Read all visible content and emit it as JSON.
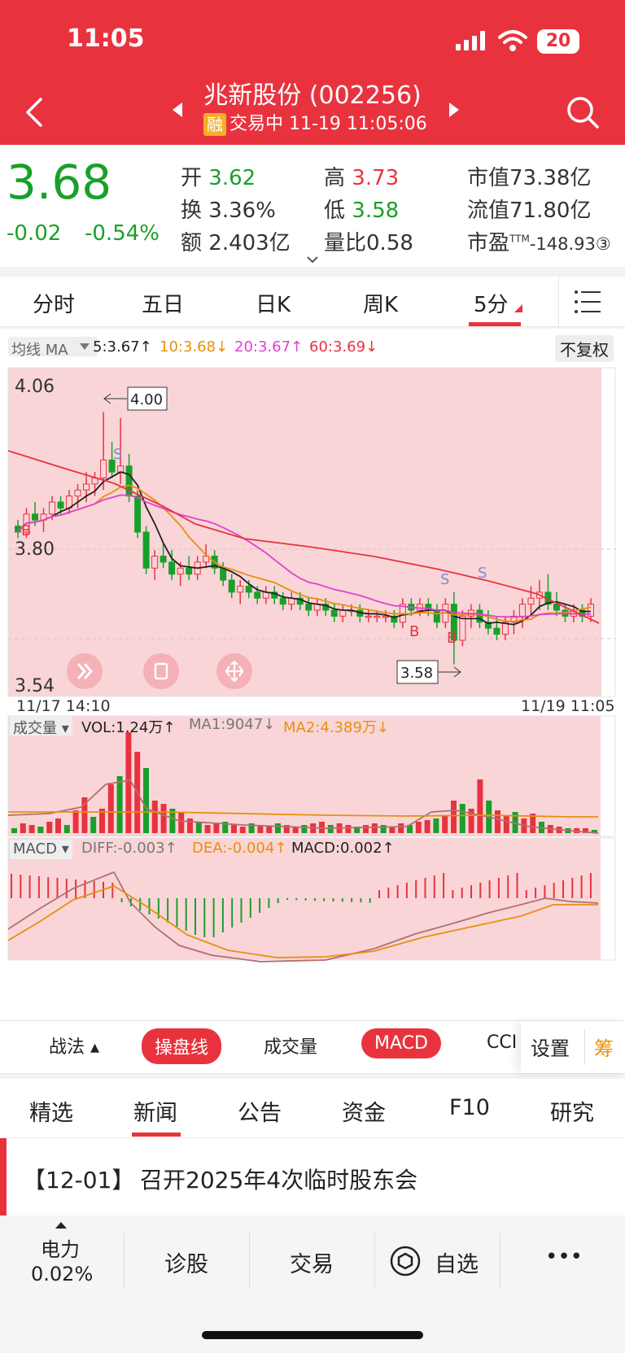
{
  "status": {
    "time": "11:05",
    "battery": "20"
  },
  "header": {
    "stock_name": "兆新股份 (002256)",
    "margin_badge": "融",
    "trade_status": "交易中 11-19 11:05:06"
  },
  "quote": {
    "price": "3.68",
    "change": "-0.02",
    "change_pct": "-0.54%",
    "open_label": "开",
    "open": "3.62",
    "turnover_label": "换",
    "turnover": "3.36%",
    "amount_label": "额",
    "amount": "2.403亿",
    "high_label": "高",
    "high": "3.73",
    "low_label": "低",
    "low": "3.58",
    "vol_ratio_label": "量比",
    "vol_ratio": "0.58",
    "mktcap_label": "市值",
    "mktcap": "73.38亿",
    "float_label": "流值",
    "float_cap": "71.80亿",
    "pe_label": "市盈",
    "pe_sup": "TTM",
    "pe": "-148.93③"
  },
  "period_tabs": [
    "分时",
    "五日",
    "日K",
    "周K",
    "5分"
  ],
  "active_period": "5分",
  "ma_legend": {
    "label": "均线 MA",
    "ma5": "5:3.67↑",
    "ma10": "10:3.68↓",
    "ma20": "20:3.67↑",
    "ma60": "60:3.69↓",
    "adjust": "不复权"
  },
  "chart_data": [
    {
      "type": "candlestick",
      "y_top_label": "4.06",
      "y_mid_label": "3.80",
      "y_bottom_label": "3.54",
      "ylim": [
        3.54,
        4.06
      ],
      "x_start_label": "11/17 14:10",
      "x_end_label": "11/19 11:05",
      "max_annotation": "4.00",
      "min_annotation": "3.58",
      "signals": {
        "buy": "B",
        "sell": "S"
      },
      "candles": [
        [
          3.81,
          3.82,
          3.79,
          3.8
        ],
        [
          3.8,
          3.84,
          3.79,
          3.83
        ],
        [
          3.83,
          3.85,
          3.81,
          3.82
        ],
        [
          3.82,
          3.84,
          3.8,
          3.83
        ],
        [
          3.83,
          3.86,
          3.82,
          3.85
        ],
        [
          3.85,
          3.86,
          3.83,
          3.84
        ],
        [
          3.84,
          3.87,
          3.83,
          3.86
        ],
        [
          3.86,
          3.88,
          3.84,
          3.87
        ],
        [
          3.87,
          3.9,
          3.85,
          3.88
        ],
        [
          3.88,
          3.9,
          3.86,
          3.89
        ],
        [
          3.89,
          4.0,
          3.87,
          3.92
        ],
        [
          3.92,
          3.95,
          3.89,
          3.9
        ],
        [
          3.9,
          3.99,
          3.88,
          3.91
        ],
        [
          3.91,
          3.93,
          3.85,
          3.86
        ],
        [
          3.86,
          3.87,
          3.79,
          3.8
        ],
        [
          3.8,
          3.81,
          3.73,
          3.74
        ],
        [
          3.74,
          3.77,
          3.72,
          3.76
        ],
        [
          3.76,
          3.78,
          3.74,
          3.75
        ],
        [
          3.75,
          3.77,
          3.72,
          3.73
        ],
        [
          3.73,
          3.75,
          3.71,
          3.74
        ],
        [
          3.74,
          3.76,
          3.72,
          3.73
        ],
        [
          3.73,
          3.76,
          3.72,
          3.75
        ],
        [
          3.75,
          3.78,
          3.74,
          3.76
        ],
        [
          3.76,
          3.77,
          3.73,
          3.74
        ],
        [
          3.74,
          3.75,
          3.71,
          3.72
        ],
        [
          3.72,
          3.73,
          3.69,
          3.7
        ],
        [
          3.7,
          3.72,
          3.68,
          3.71
        ],
        [
          3.71,
          3.72,
          3.69,
          3.7
        ],
        [
          3.7,
          3.71,
          3.68,
          3.69
        ],
        [
          3.69,
          3.71,
          3.68,
          3.7
        ],
        [
          3.7,
          3.71,
          3.68,
          3.69
        ],
        [
          3.69,
          3.7,
          3.67,
          3.68
        ],
        [
          3.68,
          3.7,
          3.67,
          3.69
        ],
        [
          3.69,
          3.7,
          3.67,
          3.68
        ],
        [
          3.68,
          3.69,
          3.66,
          3.67
        ],
        [
          3.67,
          3.69,
          3.66,
          3.68
        ],
        [
          3.68,
          3.69,
          3.66,
          3.67
        ],
        [
          3.67,
          3.68,
          3.65,
          3.66
        ],
        [
          3.66,
          3.68,
          3.65,
          3.67
        ],
        [
          3.67,
          3.68,
          3.66,
          3.67
        ],
        [
          3.67,
          3.68,
          3.65,
          3.66
        ],
        [
          3.66,
          3.67,
          3.65,
          3.66
        ],
        [
          3.66,
          3.67,
          3.65,
          3.66
        ],
        [
          3.66,
          3.67,
          3.65,
          3.66
        ],
        [
          3.66,
          3.67,
          3.64,
          3.65
        ],
        [
          3.65,
          3.69,
          3.64,
          3.68
        ],
        [
          3.68,
          3.69,
          3.66,
          3.67
        ],
        [
          3.67,
          3.69,
          3.66,
          3.68
        ],
        [
          3.68,
          3.69,
          3.66,
          3.67
        ],
        [
          3.67,
          3.68,
          3.64,
          3.65
        ],
        [
          3.65,
          3.69,
          3.64,
          3.68
        ],
        [
          3.68,
          3.7,
          3.58,
          3.62
        ],
        [
          3.62,
          3.67,
          3.61,
          3.66
        ],
        [
          3.66,
          3.68,
          3.64,
          3.67
        ],
        [
          3.67,
          3.68,
          3.64,
          3.65
        ],
        [
          3.65,
          3.67,
          3.63,
          3.64
        ],
        [
          3.64,
          3.66,
          3.62,
          3.63
        ],
        [
          3.63,
          3.66,
          3.62,
          3.65
        ],
        [
          3.65,
          3.67,
          3.63,
          3.66
        ],
        [
          3.66,
          3.69,
          3.64,
          3.68
        ],
        [
          3.68,
          3.71,
          3.66,
          3.69
        ],
        [
          3.69,
          3.72,
          3.67,
          3.7
        ],
        [
          3.7,
          3.73,
          3.67,
          3.68
        ],
        [
          3.68,
          3.7,
          3.66,
          3.67
        ],
        [
          3.67,
          3.68,
          3.65,
          3.66
        ],
        [
          3.66,
          3.68,
          3.65,
          3.67
        ],
        [
          3.67,
          3.68,
          3.65,
          3.66
        ],
        [
          3.66,
          3.69,
          3.65,
          3.68
        ]
      ]
    },
    {
      "type": "bar",
      "label": "成交量",
      "legend": "VOL:1.24万↑",
      "ma1": "MA1:9047↓",
      "ma2": "MA2:4.389万↓"
    },
    {
      "type": "bar",
      "label": "MACD",
      "diff": "DIFF:-0.003↑",
      "dea": "DEA:-0.004↑",
      "macd": "MACD:0.002↑"
    }
  ],
  "indicator_bar": {
    "zhanfa": "战法",
    "caopanxian": "操盘线",
    "volume": "成交量",
    "macd": "MACD",
    "cci": "CCI",
    "settings": "设置",
    "chou": "筹"
  },
  "news_tabs": [
    "精选",
    "新闻",
    "公告",
    "资金",
    "F10",
    "研究"
  ],
  "active_news_tab": "新闻",
  "news": {
    "date": "【12-01】",
    "title": "召开2025年4次临时股东会"
  },
  "bottom_nav": {
    "sector": "电力",
    "sector_pct": "0.02%",
    "diagnose": "诊股",
    "trade": "交易",
    "watchlist": "自选",
    "more": "•••"
  },
  "colors": {
    "up": "#e8333f",
    "down": "#18a02a",
    "header": "#e8333f",
    "chart_bg": "#f9d5d8"
  }
}
